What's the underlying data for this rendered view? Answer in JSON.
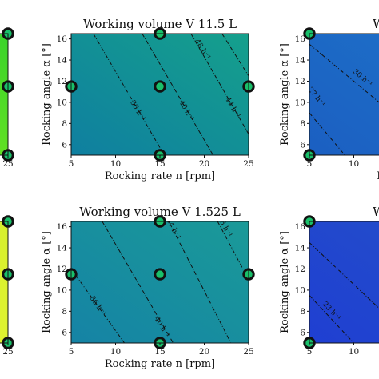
{
  "chart_data": [
    {
      "type": "heatmap",
      "title": "",
      "xlabel": "",
      "ylabel": "",
      "xticks": [
        "25"
      ],
      "yticks": [],
      "colors": [
        "#86ee1f",
        "#39d32a"
      ],
      "contours": [],
      "points": [
        {
          "x": 25,
          "y": 16.5
        },
        {
          "x": 25,
          "y": 11.5
        },
        {
          "x": 25,
          "y": 5
        }
      ]
    },
    {
      "type": "heatmap",
      "title": "Working volume V 11.5 L",
      "xlabel": "Rocking rate n [rpm]",
      "ylabel": "Rocking angle α [°]",
      "xlim": [
        5,
        25
      ],
      "ylim": [
        5,
        16.5
      ],
      "xticks": [
        "5",
        "10",
        "15",
        "20",
        "25"
      ],
      "yticks": [
        "6",
        "8",
        "10",
        "12",
        "14",
        "16"
      ],
      "colors": [
        "#0f7fa0",
        "#15a08c"
      ],
      "contours": [
        {
          "label": "36 h⁻¹",
          "line": [
            [
              7.5,
              16.5
            ],
            [
              15.5,
              5
            ]
          ],
          "label_at": [
            12.5,
            9.2
          ]
        },
        {
          "label": "40 h⁻¹",
          "line": [
            [
              13,
              16.5
            ],
            [
              21,
              5
            ]
          ],
          "label_at": [
            18,
            9.2
          ]
        },
        {
          "label": "44 h⁻¹",
          "line": [
            [
              18.5,
              16.5
            ],
            [
              25,
              7
            ]
          ],
          "label_at": [
            23.2,
            9.5
          ]
        },
        {
          "label": "48 h⁻¹",
          "line": [
            [
              22,
              16.5
            ],
            [
              25,
              12.5
            ]
          ],
          "label_at": [
            19.8,
            15
          ]
        }
      ],
      "points": [
        {
          "x": 15,
          "y": 16.5
        },
        {
          "x": 5,
          "y": 11.5
        },
        {
          "x": 15,
          "y": 11.5
        },
        {
          "x": 25,
          "y": 11.5
        },
        {
          "x": 15,
          "y": 5
        }
      ]
    },
    {
      "type": "heatmap",
      "title": "Working",
      "xlabel": "Rocking",
      "ylabel": "Rocking angle α [°]",
      "xlim": [
        5,
        25
      ],
      "ylim": [
        5,
        16.5
      ],
      "xticks": [
        "5",
        "10"
      ],
      "yticks": [
        "6",
        "8",
        "10",
        "12",
        "14",
        "16"
      ],
      "colors": [
        "#1b5fc2",
        "#1e72c8"
      ],
      "contours": [
        {
          "label": "30 h⁻¹",
          "line": [
            [
              5,
              15.5
            ],
            [
              20,
              5
            ]
          ],
          "label_at": [
            11,
            12.3
          ]
        },
        {
          "label": "27 h⁻¹",
          "line": [
            [
              5,
              9
            ],
            [
              9,
              5
            ]
          ],
          "label_at": [
            5.8,
            10.5
          ]
        }
      ],
      "points": [
        {
          "x": 5,
          "y": 16.5
        },
        {
          "x": 5,
          "y": 5
        }
      ]
    },
    {
      "type": "heatmap",
      "title": "",
      "xlabel": "",
      "ylabel": "",
      "xticks": [
        "25"
      ],
      "yticks": [],
      "colors": [
        "#e9f534",
        "#d6f02d"
      ],
      "contours": [],
      "points": [
        {
          "x": 25,
          "y": 16.5
        },
        {
          "x": 25,
          "y": 11.5
        },
        {
          "x": 25,
          "y": 5
        }
      ]
    },
    {
      "type": "heatmap",
      "title": "Working volume V 1.525 L",
      "xlabel": "Rocking rate n [rpm]",
      "ylabel": "Rocking angle α [°]",
      "xlim": [
        5,
        25
      ],
      "ylim": [
        5,
        16.5
      ],
      "xticks": [
        "5",
        "10",
        "15",
        "20",
        "25"
      ],
      "yticks": [
        "6",
        "8",
        "10",
        "12",
        "14",
        "16"
      ],
      "colors": [
        "#1583a5",
        "#1a9a98"
      ],
      "contours": [
        {
          "label": "36 h⁻¹",
          "line": [
            [
              5,
              12
            ],
            [
              11,
              5
            ]
          ],
          "label_at": [
            8,
            8.5
          ]
        },
        {
          "label": "40 h⁻¹",
          "line": [
            [
              8.5,
              16.5
            ],
            [
              16.5,
              5
            ]
          ],
          "label_at": [
            15.2,
            6.5
          ]
        },
        {
          "label": "44 h⁻¹",
          "line": [
            [
              16,
              16.5
            ],
            [
              23,
              5
            ]
          ],
          "label_at": [
            16.5,
            15.8
          ]
        },
        {
          "label": "48 h⁻¹",
          "line": [
            [
              21.5,
              16.5
            ],
            [
              25,
              11
            ]
          ],
          "label_at": [
            22.3,
            16
          ]
        }
      ],
      "points": [
        {
          "x": 15,
          "y": 16.5
        },
        {
          "x": 5,
          "y": 11.5
        },
        {
          "x": 15,
          "y": 11.5
        },
        {
          "x": 25,
          "y": 11.5
        },
        {
          "x": 15,
          "y": 5
        }
      ]
    },
    {
      "type": "heatmap",
      "title": "Working",
      "xlabel": "Rockin",
      "ylabel": "Rocking angle α [°]",
      "xlim": [
        5,
        25
      ],
      "ylim": [
        5,
        16.5
      ],
      "xticks": [
        "5",
        "10"
      ],
      "yticks": [
        "6",
        "8",
        "10",
        "12",
        "14",
        "16"
      ],
      "colors": [
        "#1f3fd2",
        "#2450c8"
      ],
      "contours": [
        {
          "label": "",
          "line": [
            [
              5,
              14.5
            ],
            [
              17,
              5
            ]
          ],
          "label_at": [
            0,
            0
          ]
        },
        {
          "label": "23 h⁻¹",
          "line": [
            [
              5,
              9.5
            ],
            [
              10,
              5
            ]
          ],
          "label_at": [
            7.5,
            8
          ]
        }
      ],
      "points": [
        {
          "x": 5,
          "y": 16.5
        },
        {
          "x": 5,
          "y": 5
        }
      ]
    }
  ]
}
